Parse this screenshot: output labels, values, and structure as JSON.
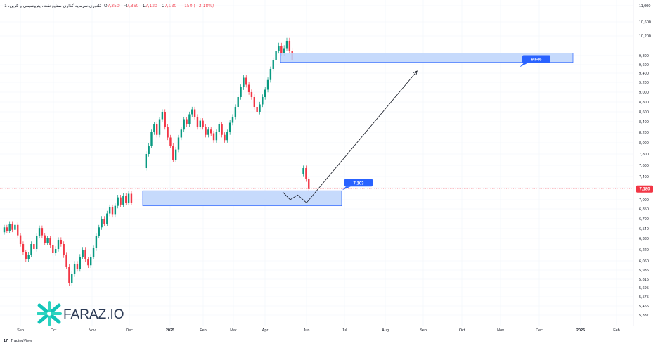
{
  "header": {
    "symbol": "نوری،سرمایه گذاری صنایع نفت، پتروشیمی و کربن، 1D",
    "open_label": "O",
    "open": "7,350",
    "high_label": "H",
    "high": "7,360",
    "low_label": "L",
    "low": "7,120",
    "close_label": "C",
    "close": "7,180",
    "change": "−150 (−2.18%)"
  },
  "chart_data": {
    "type": "candlestick",
    "y_ticks": [
      "11,000",
      "10,600",
      "10,200",
      "9,800",
      "9,600",
      "9,400",
      "9,200",
      "9,000",
      "8,800",
      "8,600",
      "8,400",
      "8,200",
      "8,000",
      "7,800",
      "7,600",
      "7,400",
      "7,200",
      "7,000",
      "6,850",
      "6,700",
      "6,540",
      "6,380",
      "6,220",
      "6,060",
      "5,935",
      "5,815",
      "5,695",
      "5,575",
      "5,455",
      "5,337"
    ],
    "x_ticks": [
      {
        "label": "Sep",
        "bold": false
      },
      {
        "label": "Oct",
        "bold": false
      },
      {
        "label": "Nov",
        "bold": false
      },
      {
        "label": "Dec",
        "bold": false
      },
      {
        "label": "2025",
        "bold": true
      },
      {
        "label": "Feb",
        "bold": false
      },
      {
        "label": "Mar",
        "bold": false
      },
      {
        "label": "Apr",
        "bold": false
      },
      {
        "label": "Jun",
        "bold": false
      },
      {
        "label": "Jul",
        "bold": false
      },
      {
        "label": "Aug",
        "bold": false
      },
      {
        "label": "Sep",
        "bold": false
      },
      {
        "label": "Oct",
        "bold": false
      },
      {
        "label": "Nov",
        "bold": false
      },
      {
        "label": "Dec",
        "bold": false
      },
      {
        "label": "2026",
        "bold": true
      },
      {
        "label": "Feb",
        "bold": false
      }
    ],
    "last_price": "7,180",
    "zones": [
      {
        "name": "resistance-zone",
        "top": 9850,
        "bottom": 9650,
        "label": "9,646"
      },
      {
        "name": "support-zone",
        "top": 7150,
        "bottom": 6900,
        "label": "7,103"
      }
    ],
    "projected_path": [
      {
        "date": "2025-04-27",
        "price": 7130
      },
      {
        "date": "2025-05-08",
        "price": 7000
      },
      {
        "date": "2025-05-19",
        "price": 7080
      },
      {
        "date": "2025-06-01",
        "price": 6950
      },
      {
        "date": "2025-08-27",
        "price": 9450
      }
    ],
    "colors": {
      "up": "#089981",
      "down": "#f23645",
      "zone_fill": "#bcd3fb",
      "zone_border": "#2962ff",
      "tag": "#2962ff",
      "price_tag": "#f23645",
      "grid": "#f0f3fa"
    }
  },
  "logo": {
    "text": "FARAZ.IO"
  },
  "footer": {
    "brand": "TradingView"
  }
}
